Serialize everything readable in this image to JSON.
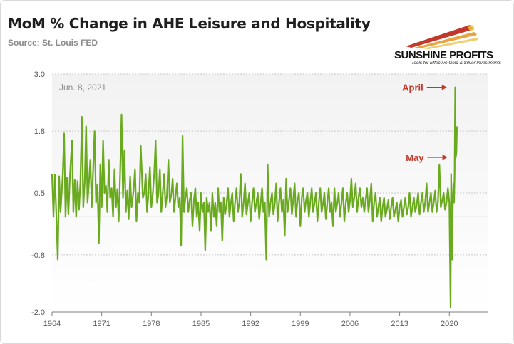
{
  "header": {
    "title": "MoM % Change in AHE Leisure and Hospitality",
    "source": "Source: St. Louis FED"
  },
  "logo": {
    "name": "SUNSHINE PROFITS",
    "tagline": "Tools for Effective Gold & Silver Investments"
  },
  "chart_data": {
    "type": "line",
    "title": "MoM % Change in AHE Leisure and Hospitality",
    "xlabel": "",
    "ylabel": "",
    "x_range": [
      1964,
      2025.5
    ],
    "ylim": [
      -2.0,
      3.0
    ],
    "y_ticks": [
      3.0,
      1.8,
      0.5,
      -0.8,
      -2.0
    ],
    "y_tick_labels": [
      "3.0",
      "1.8",
      "0.5",
      "-0.8",
      "-2.0"
    ],
    "x_ticks": [
      1964,
      1971,
      1978,
      1985,
      1992,
      1999,
      2006,
      2013,
      2020
    ],
    "x_tick_labels": [
      "1964",
      "1971",
      "1978",
      "1985",
      "1992",
      "1999",
      "2006",
      "2013",
      "2020"
    ],
    "grid": "horizontal",
    "line_color": "#6aaa1f",
    "date_label": "Jun. 8, 2021",
    "annotations": [
      {
        "label": "April",
        "x": 2020.25,
        "y": 2.72
      },
      {
        "label": "May",
        "x": 2020.33,
        "y": 1.25
      }
    ],
    "series": [
      {
        "values": [
          [
            1964.0,
            0.9
          ],
          [
            1964.2,
            0.0
          ],
          [
            1964.4,
            0.88
          ],
          [
            1964.6,
            0.05
          ],
          [
            1964.8,
            -0.9
          ],
          [
            1965.0,
            0.85
          ],
          [
            1965.2,
            0.1
          ],
          [
            1965.5,
            0.85
          ],
          [
            1965.7,
            1.75
          ],
          [
            1965.9,
            0.0
          ],
          [
            1966.1,
            0.82
          ],
          [
            1966.3,
            0.05
          ],
          [
            1966.5,
            0.8
          ],
          [
            1966.8,
            1.6
          ],
          [
            1967.0,
            0.1
          ],
          [
            1967.2,
            0.78
          ],
          [
            1967.4,
            0.0
          ],
          [
            1967.6,
            0.75
          ],
          [
            1967.8,
            0.15
          ],
          [
            1968.0,
            0.75
          ],
          [
            1968.2,
            2.1
          ],
          [
            1968.4,
            0.2
          ],
          [
            1968.6,
            0.72
          ],
          [
            1968.8,
            1.9
          ],
          [
            1969.0,
            0.3
          ],
          [
            1969.2,
            0.7
          ],
          [
            1969.4,
            1.2
          ],
          [
            1969.6,
            0.2
          ],
          [
            1969.8,
            1.0
          ],
          [
            1970.0,
            1.8
          ],
          [
            1970.2,
            0.3
          ],
          [
            1970.4,
            0.68
          ],
          [
            1970.6,
            -0.55
          ],
          [
            1970.8,
            1.1
          ],
          [
            1971.0,
            0.2
          ],
          [
            1971.2,
            1.6
          ],
          [
            1971.4,
            0.5
          ],
          [
            1971.6,
            0.65
          ],
          [
            1971.8,
            0.1
          ],
          [
            1972.0,
            1.2
          ],
          [
            1972.2,
            0.4
          ],
          [
            1972.4,
            0.6
          ],
          [
            1972.6,
            0.0
          ],
          [
            1972.8,
            1.0
          ],
          [
            1973.0,
            0.2
          ],
          [
            1973.2,
            0.58
          ],
          [
            1973.4,
            -0.1
          ],
          [
            1973.6,
            0.9
          ],
          [
            1973.8,
            2.15
          ],
          [
            1974.0,
            0.4
          ],
          [
            1974.2,
            1.4
          ],
          [
            1974.4,
            0.1
          ],
          [
            1974.6,
            0.55
          ],
          [
            1974.8,
            -0.05
          ],
          [
            1975.0,
            0.85
          ],
          [
            1975.2,
            0.2
          ],
          [
            1975.5,
            0.55
          ],
          [
            1975.7,
            1.0
          ],
          [
            1975.9,
            -0.1
          ],
          [
            1976.1,
            0.5
          ],
          [
            1976.3,
            0.3
          ],
          [
            1976.5,
            1.5
          ],
          [
            1976.8,
            0.4
          ],
          [
            1977.0,
            0.5
          ],
          [
            1977.2,
            0.9
          ],
          [
            1977.4,
            0.1
          ],
          [
            1977.6,
            0.5
          ],
          [
            1977.8,
            1.05
          ],
          [
            1978.0,
            0.2
          ],
          [
            1978.2,
            0.48
          ],
          [
            1978.4,
            0.9
          ],
          [
            1978.6,
            1.6
          ],
          [
            1978.8,
            0.3
          ],
          [
            1979.0,
            0.48
          ],
          [
            1979.2,
            1.0
          ],
          [
            1979.4,
            0.1
          ],
          [
            1979.6,
            0.48
          ],
          [
            1979.8,
            0.9
          ],
          [
            1980.0,
            0.2
          ],
          [
            1980.2,
            0.45
          ],
          [
            1980.4,
            1.2
          ],
          [
            1980.6,
            0.3
          ],
          [
            1980.8,
            0.45
          ],
          [
            1981.0,
            0.8
          ],
          [
            1981.2,
            0.1
          ],
          [
            1981.4,
            0.42
          ],
          [
            1981.6,
            0.7
          ],
          [
            1981.8,
            0.2
          ],
          [
            1982.0,
            0.4
          ],
          [
            1982.2,
            -0.6
          ],
          [
            1982.4,
            1.7
          ],
          [
            1982.6,
            0.1
          ],
          [
            1982.8,
            0.4
          ],
          [
            1983.0,
            0.6
          ],
          [
            1983.2,
            0.1
          ],
          [
            1983.4,
            0.35
          ],
          [
            1983.6,
            0.5
          ],
          [
            1983.8,
            -0.2
          ],
          [
            1984.0,
            0.35
          ],
          [
            1984.2,
            0.6
          ],
          [
            1984.4,
            0.0
          ],
          [
            1984.6,
            0.3
          ],
          [
            1984.8,
            -0.3
          ],
          [
            1985.0,
            0.5
          ],
          [
            1985.2,
            0.1
          ],
          [
            1985.4,
            0.3
          ],
          [
            1985.6,
            -0.7
          ],
          [
            1985.8,
            0.4
          ],
          [
            1986.0,
            0.1
          ],
          [
            1986.2,
            0.3
          ],
          [
            1986.4,
            -0.3
          ],
          [
            1986.6,
            0.5
          ],
          [
            1986.8,
            0.0
          ],
          [
            1987.0,
            0.3
          ],
          [
            1987.2,
            -0.2
          ],
          [
            1987.4,
            0.6
          ],
          [
            1987.6,
            0.1
          ],
          [
            1987.8,
            0.3
          ],
          [
            1988.0,
            -0.5
          ],
          [
            1988.2,
            0.4
          ],
          [
            1988.4,
            0.05
          ],
          [
            1988.6,
            0.28
          ],
          [
            1988.8,
            0.6
          ],
          [
            1989.0,
            0.0
          ],
          [
            1989.2,
            0.28
          ],
          [
            1989.4,
            0.5
          ],
          [
            1989.6,
            -0.1
          ],
          [
            1989.8,
            0.3
          ],
          [
            1990.0,
            0.6
          ],
          [
            1990.2,
            0.1
          ],
          [
            1990.4,
            0.3
          ],
          [
            1990.6,
            0.9
          ],
          [
            1990.8,
            0.0
          ],
          [
            1991.0,
            0.3
          ],
          [
            1991.2,
            0.7
          ],
          [
            1991.4,
            0.05
          ],
          [
            1991.6,
            0.28
          ],
          [
            1991.8,
            0.5
          ],
          [
            1992.0,
            -0.1
          ],
          [
            1992.2,
            0.3
          ],
          [
            1992.4,
            0.6
          ],
          [
            1992.6,
            0.1
          ],
          [
            1992.8,
            0.3
          ],
          [
            1993.0,
            0.5
          ],
          [
            1993.2,
            -0.05
          ],
          [
            1993.4,
            0.28
          ],
          [
            1993.6,
            0.6
          ],
          [
            1993.8,
            0.1
          ],
          [
            1994.0,
            0.3
          ],
          [
            1994.2,
            -0.9
          ],
          [
            1994.4,
            1.1
          ],
          [
            1994.6,
            0.0
          ],
          [
            1994.8,
            0.3
          ],
          [
            1995.0,
            0.5
          ],
          [
            1995.2,
            0.05
          ],
          [
            1995.4,
            0.28
          ],
          [
            1995.6,
            0.7
          ],
          [
            1995.8,
            -0.1
          ],
          [
            1996.0,
            0.3
          ],
          [
            1996.2,
            0.6
          ],
          [
            1996.4,
            0.1
          ],
          [
            1996.6,
            0.35
          ],
          [
            1996.8,
            -0.4
          ],
          [
            1997.0,
            0.8
          ],
          [
            1997.2,
            0.1
          ],
          [
            1997.4,
            0.35
          ],
          [
            1997.6,
            0.6
          ],
          [
            1997.8,
            0.05
          ],
          [
            1998.0,
            0.35
          ],
          [
            1998.2,
            0.7
          ],
          [
            1998.4,
            0.0
          ],
          [
            1998.6,
            0.35
          ],
          [
            1998.8,
            0.5
          ],
          [
            1999.0,
            -0.2
          ],
          [
            1999.2,
            0.4
          ],
          [
            1999.4,
            0.6
          ],
          [
            1999.6,
            0.1
          ],
          [
            1999.8,
            0.35
          ],
          [
            2000.0,
            0.5
          ],
          [
            2000.2,
            0.0
          ],
          [
            2000.4,
            0.3
          ],
          [
            2000.6,
            0.6
          ],
          [
            2000.8,
            0.1
          ],
          [
            2001.0,
            0.3
          ],
          [
            2001.2,
            0.5
          ],
          [
            2001.4,
            -0.1
          ],
          [
            2001.6,
            0.3
          ],
          [
            2001.8,
            0.6
          ],
          [
            2002.0,
            0.1
          ],
          [
            2002.2,
            0.28
          ],
          [
            2002.4,
            0.5
          ],
          [
            2002.6,
            -0.05
          ],
          [
            2002.8,
            0.28
          ],
          [
            2003.0,
            0.6
          ],
          [
            2003.2,
            0.1
          ],
          [
            2003.4,
            0.3
          ],
          [
            2003.6,
            -0.2
          ],
          [
            2003.8,
            0.6
          ],
          [
            2004.0,
            0.1
          ],
          [
            2004.2,
            0.28
          ],
          [
            2004.4,
            0.5
          ],
          [
            2004.6,
            0.0
          ],
          [
            2004.8,
            0.3
          ],
          [
            2005.0,
            0.6
          ],
          [
            2005.2,
            -0.1
          ],
          [
            2005.4,
            0.3
          ],
          [
            2005.6,
            0.5
          ],
          [
            2005.8,
            0.1
          ],
          [
            2006.0,
            0.35
          ],
          [
            2006.2,
            0.8
          ],
          [
            2006.4,
            0.2
          ],
          [
            2006.6,
            0.4
          ],
          [
            2006.8,
            0.7
          ],
          [
            2007.0,
            0.1
          ],
          [
            2007.2,
            0.4
          ],
          [
            2007.4,
            0.6
          ],
          [
            2007.6,
            0.2
          ],
          [
            2007.8,
            0.4
          ],
          [
            2008.0,
            0.1
          ],
          [
            2008.2,
            0.35
          ],
          [
            2008.4,
            0.6
          ],
          [
            2008.6,
            0.1
          ],
          [
            2008.8,
            0.35
          ],
          [
            2009.0,
            0.7
          ],
          [
            2009.2,
            -0.1
          ],
          [
            2009.4,
            0.3
          ],
          [
            2009.6,
            0.5
          ],
          [
            2009.8,
            0.0
          ],
          [
            2010.0,
            0.2
          ],
          [
            2010.2,
            0.4
          ],
          [
            2010.4,
            -0.1
          ],
          [
            2010.6,
            0.2
          ],
          [
            2010.8,
            0.4
          ],
          [
            2011.0,
            0.0
          ],
          [
            2011.2,
            0.15
          ],
          [
            2011.4,
            0.35
          ],
          [
            2011.6,
            -0.05
          ],
          [
            2011.8,
            0.2
          ],
          [
            2012.0,
            0.4
          ],
          [
            2012.2,
            0.0
          ],
          [
            2012.4,
            0.15
          ],
          [
            2012.6,
            0.3
          ],
          [
            2012.8,
            -0.1
          ],
          [
            2013.0,
            0.2
          ],
          [
            2013.2,
            0.35
          ],
          [
            2013.4,
            0.0
          ],
          [
            2013.6,
            0.2
          ],
          [
            2013.8,
            0.4
          ],
          [
            2014.0,
            0.05
          ],
          [
            2014.2,
            0.2
          ],
          [
            2014.4,
            0.5
          ],
          [
            2014.6,
            0.0
          ],
          [
            2014.8,
            0.2
          ],
          [
            2015.0,
            0.4
          ],
          [
            2015.2,
            0.1
          ],
          [
            2015.4,
            0.25
          ],
          [
            2015.6,
            0.5
          ],
          [
            2015.8,
            0.05
          ],
          [
            2016.0,
            0.3
          ],
          [
            2016.2,
            0.5
          ],
          [
            2016.4,
            0.1
          ],
          [
            2016.6,
            0.3
          ],
          [
            2016.8,
            0.7
          ],
          [
            2017.0,
            0.1
          ],
          [
            2017.2,
            0.3
          ],
          [
            2017.4,
            0.5
          ],
          [
            2017.6,
            0.1
          ],
          [
            2017.8,
            0.3
          ],
          [
            2018.0,
            0.55
          ],
          [
            2018.2,
            0.1
          ],
          [
            2018.4,
            0.3
          ],
          [
            2018.6,
            1.1
          ],
          [
            2018.8,
            0.2
          ],
          [
            2019.0,
            0.35
          ],
          [
            2019.2,
            0.5
          ],
          [
            2019.4,
            0.15
          ],
          [
            2019.6,
            0.3
          ],
          [
            2019.8,
            0.6
          ],
          [
            2020.0,
            0.3
          ],
          [
            2020.08,
            -0.75
          ],
          [
            2020.17,
            -1.9
          ],
          [
            2020.25,
            0.9
          ],
          [
            2020.33,
            -0.3
          ],
          [
            2020.42,
            -0.9
          ],
          [
            2020.5,
            0.4
          ],
          [
            2020.58,
            0.7
          ],
          [
            2020.67,
            0.3
          ],
          [
            2020.75,
            0.9
          ],
          [
            2020.83,
            2.72
          ],
          [
            2020.92,
            1.25
          ],
          [
            2021.0,
            1.35
          ],
          [
            2021.08,
            1.9
          ]
        ]
      }
    ]
  }
}
